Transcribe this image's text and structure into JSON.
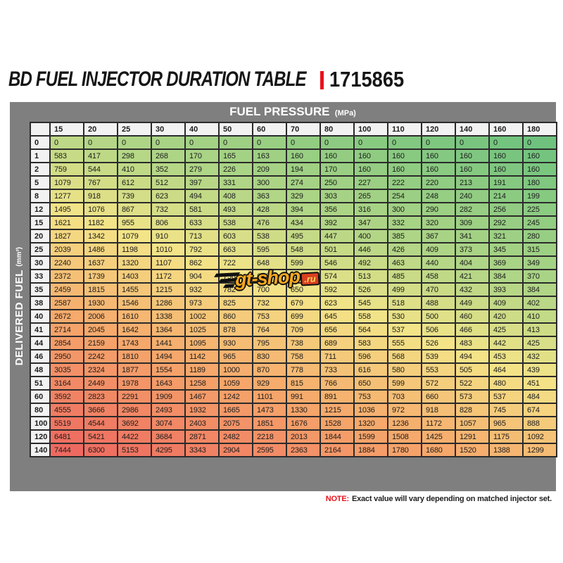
{
  "title": {
    "text": "BD FUEL INJECTOR DURATION TABLE",
    "part_number": "1715865"
  },
  "labels": {
    "pressure": "FUEL PRESSURE",
    "pressure_unit": "(MPa)",
    "fuel": "DELIVERED FUEL",
    "fuel_unit": "(mm³)"
  },
  "watermark": {
    "text": "gt-shop",
    "suffix": ".ru"
  },
  "note": {
    "prefix": "NOTE:",
    "text": "Exact value will vary depending on matched injector set."
  },
  "colors": {
    "accent_red": "#e8121c",
    "band_gray": "#7f7f7f",
    "header_bg": "#f2f2f2",
    "grid_border": "#2b2b2b",
    "scale_green": "#6ec27e",
    "scale_yellowgreen": "#b2d686",
    "scale_yellow": "#f4e487",
    "scale_orange": "#f6a96b",
    "scale_red": "#ee6a60"
  },
  "chart_data": {
    "type": "heatmap",
    "title": "BD FUEL INJECTOR DURATION TABLE 1715865",
    "xlabel": "FUEL PRESSURE (MPa)",
    "ylabel": "DELIVERED FUEL (mm³)",
    "x": [
      15,
      20,
      25,
      30,
      40,
      50,
      60,
      70,
      80,
      100,
      110,
      120,
      140,
      160,
      180
    ],
    "y": [
      0,
      1,
      2,
      5,
      8,
      12,
      15,
      20,
      25,
      30,
      33,
      35,
      38,
      40,
      41,
      44,
      46,
      48,
      51,
      60,
      80,
      100,
      120,
      140
    ],
    "values": [
      [
        0,
        0,
        0,
        0,
        0,
        0,
        0,
        0,
        0,
        0,
        0,
        0,
        0,
        0,
        0
      ],
      [
        583,
        417,
        298,
        268,
        170,
        165,
        163,
        160,
        160,
        160,
        160,
        160,
        160,
        160,
        160
      ],
      [
        759,
        544,
        410,
        352,
        279,
        226,
        209,
        194,
        170,
        160,
        160,
        160,
        160,
        160,
        160
      ],
      [
        1079,
        767,
        612,
        512,
        397,
        331,
        300,
        274,
        250,
        227,
        222,
        220,
        213,
        191,
        180
      ],
      [
        1277,
        918,
        739,
        623,
        494,
        408,
        363,
        329,
        303,
        265,
        254,
        248,
        240,
        214,
        199
      ],
      [
        1495,
        1076,
        867,
        732,
        581,
        493,
        428,
        394,
        356,
        316,
        300,
        290,
        282,
        256,
        225
      ],
      [
        1621,
        1182,
        955,
        806,
        633,
        538,
        476,
        434,
        392,
        347,
        332,
        320,
        309,
        292,
        245
      ],
      [
        1827,
        1342,
        1079,
        910,
        713,
        603,
        538,
        495,
        447,
        400,
        385,
        367,
        341,
        321,
        280
      ],
      [
        2039,
        1486,
        1198,
        1010,
        792,
        663,
        595,
        548,
        501,
        446,
        426,
        409,
        373,
        345,
        315
      ],
      [
        2240,
        1637,
        1320,
        1107,
        862,
        722,
        648,
        599,
        546,
        492,
        463,
        440,
        404,
        369,
        349
      ],
      [
        2372,
        1739,
        1403,
        1172,
        904,
        758,
        679,
        630,
        574,
        513,
        485,
        458,
        421,
        384,
        370
      ],
      [
        2459,
        1815,
        1455,
        1215,
        932,
        782,
        700,
        650,
        592,
        526,
        499,
        470,
        432,
        393,
        384
      ],
      [
        2587,
        1930,
        1546,
        1286,
        973,
        825,
        732,
        679,
        623,
        545,
        518,
        488,
        449,
        409,
        402
      ],
      [
        2672,
        2006,
        1610,
        1338,
        1002,
        860,
        753,
        699,
        645,
        558,
        530,
        500,
        460,
        420,
        410
      ],
      [
        2714,
        2045,
        1642,
        1364,
        1025,
        878,
        764,
        709,
        656,
        564,
        537,
        506,
        466,
        425,
        413
      ],
      [
        2854,
        2159,
        1743,
        1441,
        1095,
        930,
        795,
        738,
        689,
        583,
        555,
        526,
        483,
        442,
        425
      ],
      [
        2950,
        2242,
        1810,
        1494,
        1142,
        965,
        830,
        758,
        711,
        596,
        568,
        539,
        494,
        453,
        432
      ],
      [
        3035,
        2324,
        1877,
        1554,
        1189,
        1000,
        870,
        778,
        733,
        616,
        580,
        553,
        505,
        464,
        439
      ],
      [
        3164,
        2449,
        1978,
        1643,
        1258,
        1059,
        929,
        815,
        766,
        650,
        599,
        572,
        522,
        480,
        451
      ],
      [
        3592,
        2823,
        2291,
        1909,
        1467,
        1242,
        1101,
        991,
        891,
        753,
        703,
        660,
        573,
        537,
        484
      ],
      [
        4555,
        3666,
        2986,
        2493,
        1932,
        1665,
        1473,
        1330,
        1215,
        1036,
        972,
        918,
        828,
        745,
        674
      ],
      [
        5519,
        4544,
        3692,
        3074,
        2403,
        2075,
        1851,
        1676,
        1528,
        1320,
        1236,
        1172,
        1057,
        965,
        888
      ],
      [
        6481,
        5421,
        4422,
        3684,
        2871,
        2482,
        2218,
        2013,
        1844,
        1599,
        1508,
        1425,
        1291,
        1175,
        1092
      ],
      [
        7444,
        6300,
        5153,
        4295,
        3343,
        2904,
        2595,
        2363,
        2164,
        1884,
        1780,
        1680,
        1520,
        1388,
        1299
      ]
    ],
    "legend": "none",
    "grid": true,
    "color_scale": [
      "#6ec27e",
      "#b2d686",
      "#f4e487",
      "#f6a96b",
      "#ee6a60"
    ]
  }
}
